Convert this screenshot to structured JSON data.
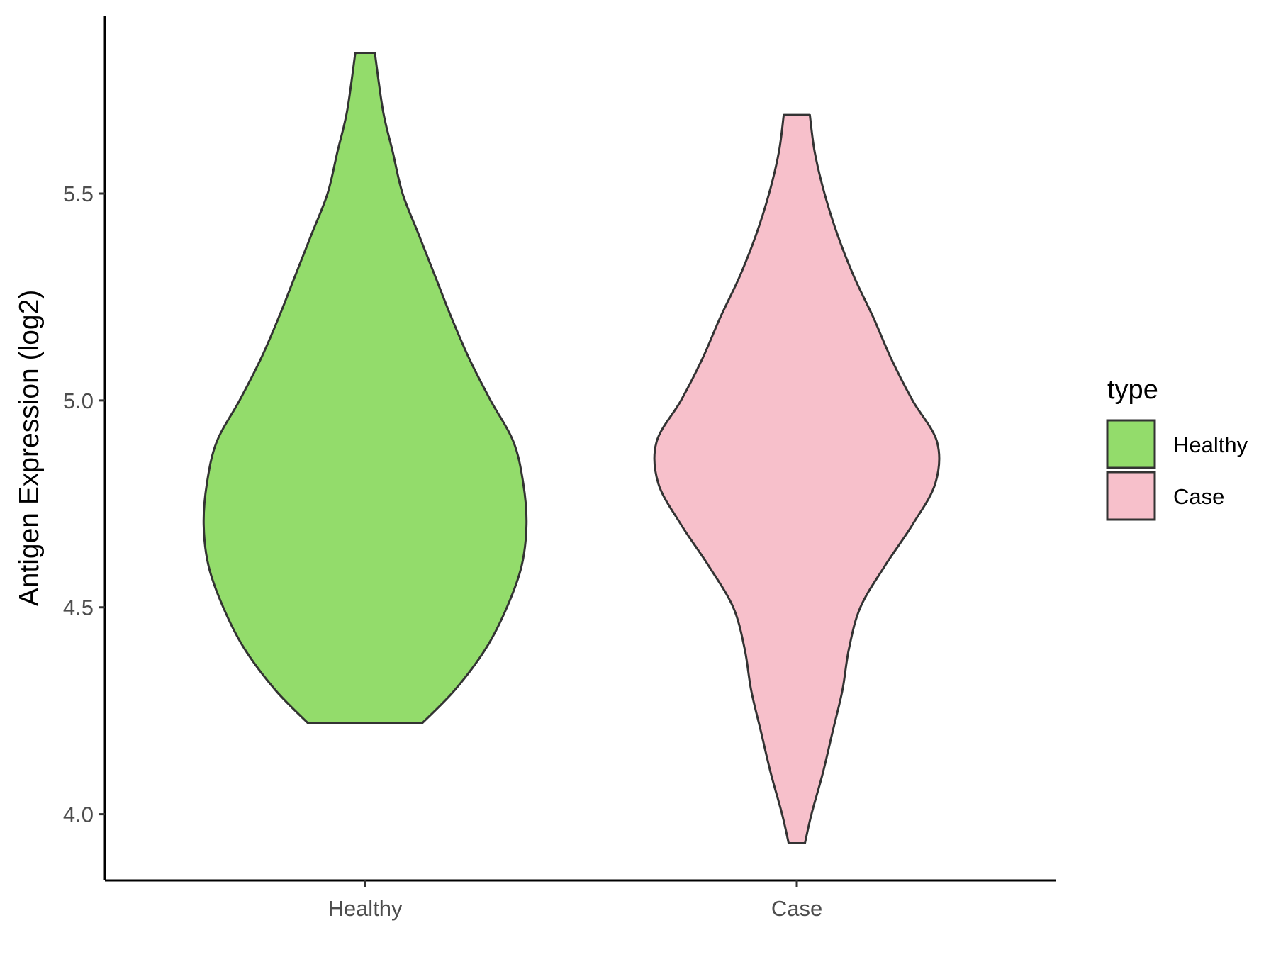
{
  "chart_data": {
    "type": "violin",
    "ylabel": "Antigen Expression (log2)",
    "xlabel": "",
    "categories": [
      "Healthy",
      "Case"
    ],
    "yticks": [
      4.0,
      4.5,
      5.0,
      5.5
    ],
    "ytick_labels": [
      "4.0",
      "4.5",
      "5.0",
      "5.5"
    ],
    "ylim": [
      3.84,
      5.93
    ],
    "legend": {
      "title": "type",
      "position": "right",
      "entries": [
        {
          "label": "Healthy",
          "color": "#93dc6b"
        },
        {
          "label": "Case",
          "color": "#f7c0cb"
        }
      ]
    },
    "series": [
      {
        "name": "Healthy",
        "color": "#93dc6b",
        "min": 4.22,
        "max": 5.84,
        "density_profile": [
          [
            4.22,
            0.35
          ],
          [
            4.3,
            0.55
          ],
          [
            4.4,
            0.74
          ],
          [
            4.5,
            0.87
          ],
          [
            4.6,
            0.96
          ],
          [
            4.7,
            0.99
          ],
          [
            4.8,
            0.97
          ],
          [
            4.9,
            0.91
          ],
          [
            5.0,
            0.77
          ],
          [
            5.1,
            0.64
          ],
          [
            5.2,
            0.53
          ],
          [
            5.3,
            0.43
          ],
          [
            5.4,
            0.33
          ],
          [
            5.5,
            0.23
          ],
          [
            5.6,
            0.17
          ],
          [
            5.7,
            0.11
          ],
          [
            5.84,
            0.06
          ]
        ]
      },
      {
        "name": "Case",
        "color": "#f7c0cb",
        "min": 3.93,
        "max": 5.69,
        "density_profile": [
          [
            3.93,
            0.05
          ],
          [
            4.0,
            0.09
          ],
          [
            4.1,
            0.16
          ],
          [
            4.2,
            0.22
          ],
          [
            4.3,
            0.28
          ],
          [
            4.4,
            0.32
          ],
          [
            4.5,
            0.39
          ],
          [
            4.6,
            0.54
          ],
          [
            4.7,
            0.71
          ],
          [
            4.8,
            0.85
          ],
          [
            4.9,
            0.86
          ],
          [
            5.0,
            0.71
          ],
          [
            5.1,
            0.58
          ],
          [
            5.2,
            0.47
          ],
          [
            5.3,
            0.35
          ],
          [
            5.4,
            0.25
          ],
          [
            5.5,
            0.17
          ],
          [
            5.6,
            0.11
          ],
          [
            5.69,
            0.08
          ]
        ]
      }
    ]
  }
}
